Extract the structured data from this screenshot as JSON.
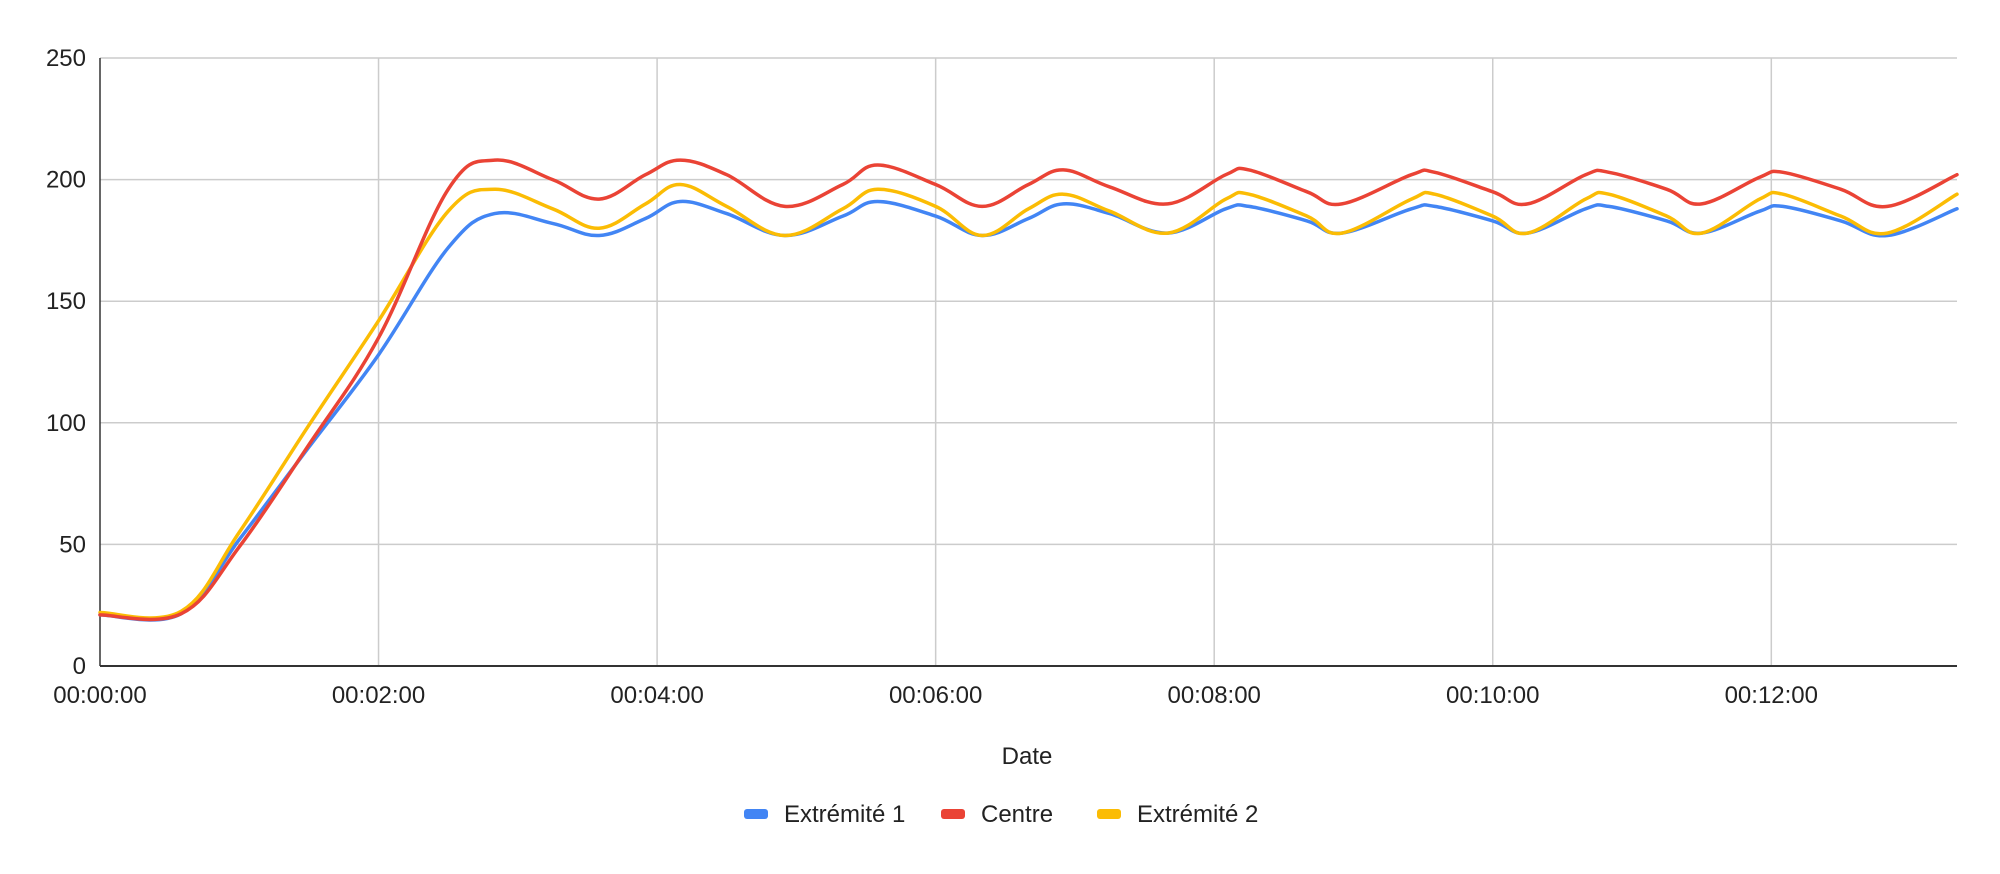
{
  "chart_data": {
    "type": "line",
    "title": "",
    "xlabel": "Date",
    "ylabel": "",
    "xlim": [
      "00:00:00",
      "00:13:20"
    ],
    "ylim": [
      0,
      250
    ],
    "x_ticks": [
      "00:00:00",
      "00:02:00",
      "00:04:00",
      "00:06:00",
      "00:08:00",
      "00:10:00",
      "00:12:00"
    ],
    "y_ticks": [
      0,
      50,
      100,
      150,
      200,
      250
    ],
    "grid": true,
    "legend_position": "bottom",
    "x": [
      "00:00:00",
      "00:00:35",
      "00:01:00",
      "00:01:30",
      "00:02:00",
      "00:02:30",
      "00:02:50",
      "00:03:15",
      "00:03:35",
      "00:03:55",
      "00:04:10",
      "00:04:30",
      "00:04:55",
      "00:05:20",
      "00:05:35",
      "00:06:00",
      "00:06:20",
      "00:06:40",
      "00:06:55",
      "00:07:15",
      "00:07:40",
      "00:08:05",
      "00:08:15",
      "00:08:40",
      "00:08:55",
      "00:09:25",
      "00:09:35",
      "00:10:00",
      "00:10:15",
      "00:10:40",
      "00:10:50",
      "00:11:15",
      "00:11:30",
      "00:11:55",
      "00:12:05",
      "00:12:30",
      "00:12:50",
      "00:13:20"
    ],
    "series": [
      {
        "name": "Extrémité 1",
        "color": "#4285F4",
        "values": [
          21,
          21.5,
          52,
          90,
          128,
          172,
          186,
          182,
          177,
          184,
          191,
          186,
          177,
          185,
          191,
          185,
          177,
          184,
          190,
          186,
          178,
          188,
          189,
          183,
          178,
          188,
          189,
          183,
          178,
          188,
          189,
          183,
          178,
          187,
          189,
          183,
          177,
          188
        ]
      },
      {
        "name": "Centre",
        "color": "#EA4335",
        "values": [
          21,
          21.5,
          49,
          91,
          135,
          196,
          208,
          200,
          192,
          202,
          208,
          202,
          189,
          198,
          206,
          198,
          189,
          198,
          204,
          197,
          190,
          202,
          204,
          195,
          190,
          202,
          203,
          195,
          190,
          202,
          203,
          196,
          190,
          201,
          203,
          196,
          189,
          202
        ]
      },
      {
        "name": "Extrémité 2",
        "color": "#FBBC04",
        "values": [
          22,
          22.5,
          55,
          99,
          142,
          187,
          196,
          188,
          180,
          190,
          198,
          189,
          177,
          188,
          196,
          189,
          177,
          188,
          194,
          187,
          178,
          192,
          194,
          185,
          178,
          192,
          194,
          185,
          178,
          192,
          194,
          185,
          178,
          192,
          194,
          185,
          178,
          194
        ]
      }
    ]
  }
}
